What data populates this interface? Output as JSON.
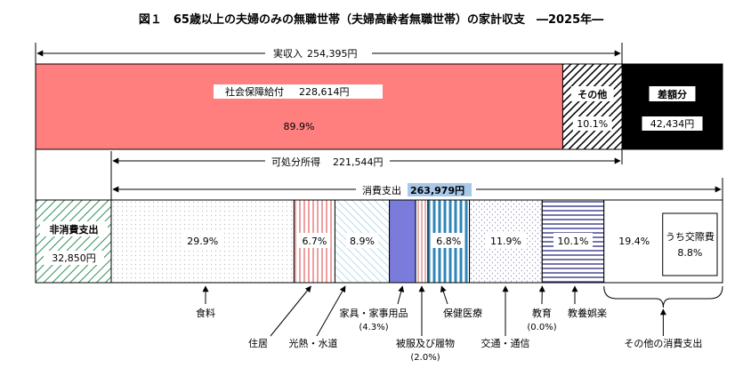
{
  "chart_data": {
    "type": "bar",
    "title": "図１　65歳以上の夫婦のみの無職世帯（夫婦高齢者無職世帯）の家計収支　―2025年―",
    "income": {
      "total_label": "実収入",
      "total_value": "254,395円",
      "disposable_label": "可処分所得",
      "disposable_value": "221,544円",
      "segments": [
        {
          "name": "社会保障給付",
          "value": 228614,
          "value_text": "228,614円",
          "share_text": "89.9%",
          "color": "#ff7f7f"
        },
        {
          "name": "その他",
          "share_text": "10.1%",
          "color": "#ffffff"
        }
      ],
      "deficit": {
        "name": "差額分",
        "value": 42434,
        "value_text": "42,434円",
        "color": "#000000"
      }
    },
    "expenditure": {
      "consumption_label": "消費支出",
      "consumption_value": "263,979円",
      "consumption_highlight": "#a9c9e8",
      "non_consumption": {
        "name": "非消費支出",
        "value": 32850,
        "value_text": "32,850円",
        "color": "#2f8f5a"
      },
      "categories": [
        {
          "name": "食料",
          "share": 29.9,
          "share_text": "29.9%",
          "color": "#cccccc"
        },
        {
          "name": "住居",
          "share": 6.7,
          "share_text": "6.7%",
          "color": "#e06060"
        },
        {
          "name": "光熱・水道",
          "share": 8.9,
          "share_text": "8.9%",
          "color": "#7fb8d8"
        },
        {
          "name": "家具・家事用品",
          "share": 4.3,
          "share_text": "(4.3%)",
          "color": "#7b7bdc"
        },
        {
          "name": "被服及び履物",
          "share": 2.0,
          "share_text": "(2.0%)",
          "color": "#cc6666"
        },
        {
          "name": "保健医療",
          "share": 6.8,
          "share_text": "6.8%",
          "color": "#2e86b8"
        },
        {
          "name": "交通・通信",
          "share": 11.9,
          "share_text": "11.9%",
          "color": "#b0b0d8"
        },
        {
          "name": "教育",
          "share": 0.0,
          "share_text": "(0.0%)",
          "color": "#ffffff"
        },
        {
          "name": "教養娯楽",
          "share": 10.1,
          "share_text": "10.1%",
          "color": "#3a3a8a"
        },
        {
          "name": "その他の消費支出",
          "share": 19.4,
          "share_text": "19.4%",
          "color": "#ffffff"
        }
      ],
      "sub_item": {
        "name": "うち交際費",
        "share_text": "8.8%"
      }
    }
  }
}
